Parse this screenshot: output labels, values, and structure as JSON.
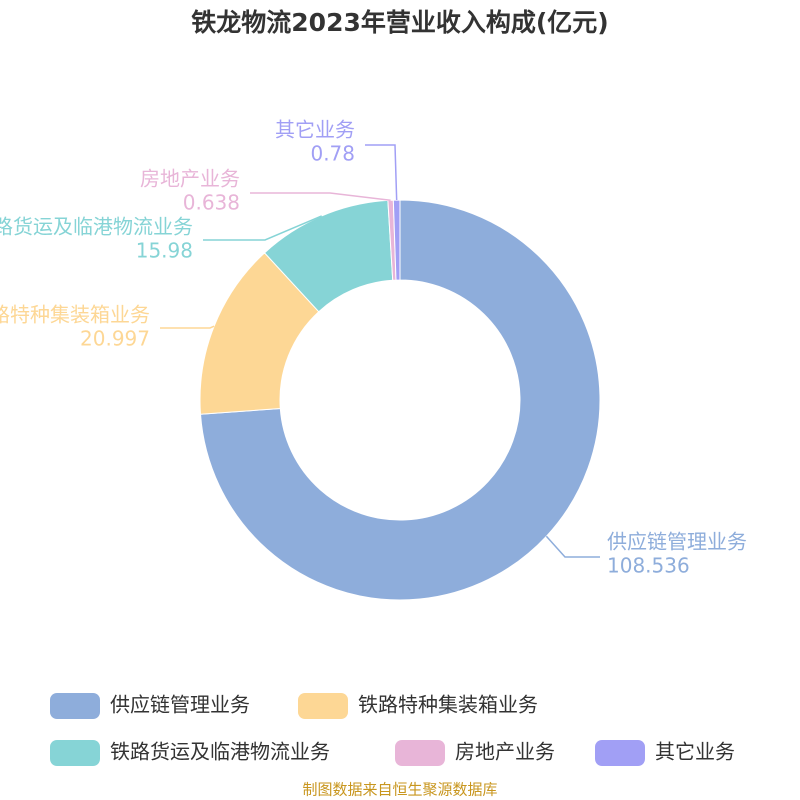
{
  "chart_data": {
    "type": "pie",
    "donut": true,
    "title": "铁龙物流2023年营业收入构成(亿元)",
    "categories": [
      "供应链管理业务",
      "铁路特种集装箱业务",
      "铁路货运及临港物流业务",
      "房地产业务",
      "其它业务"
    ],
    "values": [
      108.536,
      20.997,
      15.98,
      0.638,
      0.78
    ],
    "colors": [
      "#8eaddb",
      "#fdd795",
      "#86d4d6",
      "#e8b5d8",
      "#a19ff5"
    ],
    "source": "制图数据来自恒生聚源数据库"
  }
}
